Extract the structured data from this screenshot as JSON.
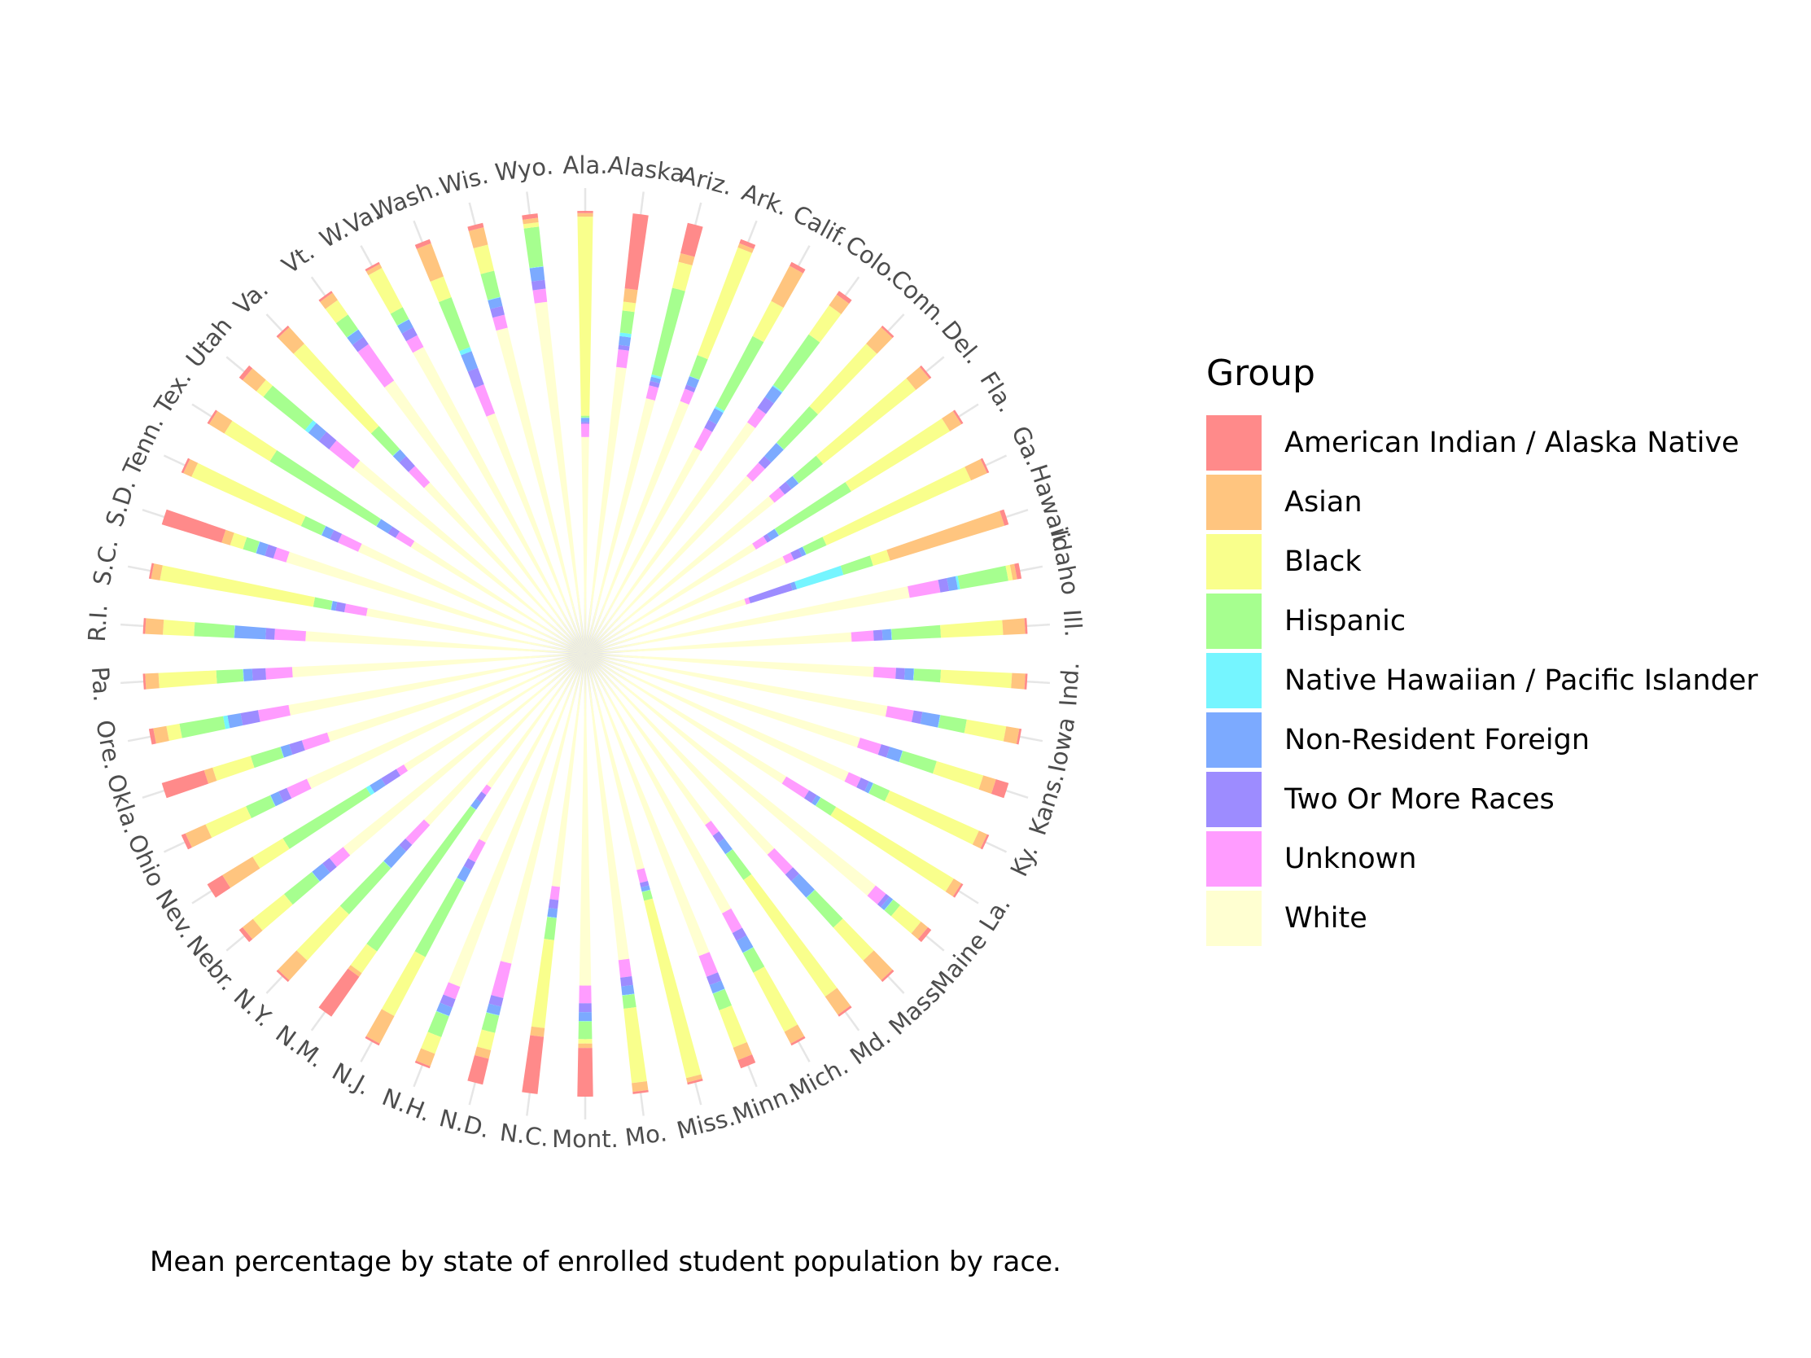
{
  "chart_data": {
    "type": "polar-stacked-bar",
    "caption": "Mean percentage by state of enrolled student population by race.",
    "legend_title": "Group",
    "legend_position": "right",
    "groups": [
      {
        "name": "American Indian / Alaska Native",
        "color": "#ff8a8a"
      },
      {
        "name": "Asian",
        "color": "#ffc57f"
      },
      {
        "name": "Black",
        "color": "#f9ff8c"
      },
      {
        "name": "Hispanic",
        "color": "#a6ff8f"
      },
      {
        "name": "Native Hawaiian / Pacific Islander",
        "color": "#75f5ff"
      },
      {
        "name": "Non-Resident Foreign",
        "color": "#7caaff"
      },
      {
        "name": "Two Or More Races",
        "color": "#9d8cff"
      },
      {
        "name": "Unknown",
        "color": "#ff9cff"
      },
      {
        "name": "White",
        "color": "#ffffd1"
      }
    ],
    "states": [
      "Ala.",
      "Alaska",
      "Ariz.",
      "Ark.",
      "Calif.",
      "Colo.",
      "Conn.",
      "Del.",
      "Fla.",
      "Ga.",
      "Hawaii",
      "Idaho",
      "Ill.",
      "Ind.",
      "Iowa",
      "Kans.",
      "Ky.",
      "La.",
      "Maine",
      "Mass.",
      "Md.",
      "Mich.",
      "Minn.",
      "Miss.",
      "Mo.",
      "Mont.",
      "N.C.",
      "N.D.",
      "N.H.",
      "N.J.",
      "N.M.",
      "N.Y.",
      "Nebr.",
      "Nev.",
      "Ohio",
      "Okla.",
      "Ore.",
      "Pa.",
      "R.I.",
      "S.C.",
      "S.D.",
      "Tenn.",
      "Tex.",
      "Utah",
      "Va.",
      "Vt.",
      "W.Va.",
      "Wash.",
      "Wis.",
      "Wyo."
    ],
    "values": [
      [
        0.5,
        0.8,
        45,
        0.4,
        0.1,
        0.9,
        0.4,
        3.0,
        49
      ],
      [
        17,
        3,
        2,
        5,
        0.8,
        2,
        1,
        4,
        65
      ],
      [
        7,
        2,
        6,
        20,
        0.5,
        1,
        1,
        3,
        59
      ],
      [
        1,
        1,
        26,
        5,
        0.1,
        2,
        1,
        3,
        61
      ],
      [
        1,
        9,
        9,
        18,
        0.5,
        3,
        2,
        5,
        53
      ],
      [
        1,
        3,
        8,
        14,
        0.3,
        3,
        3,
        4,
        64
      ],
      [
        0.5,
        5,
        19,
        11,
        0.1,
        4,
        2,
        4,
        54
      ],
      [
        0.5,
        4,
        27,
        7,
        0.1,
        2,
        2,
        3,
        55
      ],
      [
        0.5,
        3,
        26,
        19,
        0.1,
        2,
        1,
        3,
        45
      ],
      [
        0.5,
        4,
        36,
        5,
        0.1,
        1,
        2,
        2,
        50
      ],
      [
        1,
        27,
        4,
        7,
        11,
        1,
        10,
        1,
        38
      ],
      [
        1,
        1,
        1,
        11,
        0.5,
        2,
        2,
        7,
        74
      ],
      [
        0.5,
        5,
        14,
        11,
        0.1,
        2,
        2,
        5,
        60
      ],
      [
        0.5,
        3,
        16,
        6,
        0.1,
        2,
        2,
        5,
        65
      ],
      [
        0.5,
        3,
        9,
        6,
        0.1,
        4,
        2,
        6,
        69
      ],
      [
        3,
        3,
        11,
        8,
        0.1,
        3,
        2,
        5,
        65
      ],
      [
        0.5,
        2,
        22,
        4,
        0.1,
        1,
        2,
        3,
        65
      ],
      [
        0.5,
        2,
        31,
        4,
        0.1,
        1,
        2,
        6,
        53
      ],
      [
        1,
        2,
        6,
        2,
        0.1,
        1,
        1,
        3,
        84
      ],
      [
        0.5,
        6,
        10,
        9,
        0.1,
        5,
        2,
        6,
        61
      ],
      [
        0.5,
        5,
        32,
        7,
        0.1,
        3,
        2,
        3,
        47
      ],
      [
        0.5,
        3,
        15,
        5,
        0.1,
        3,
        2,
        5,
        66
      ],
      [
        2,
        3,
        9,
        4,
        0.1,
        2,
        2,
        5,
        73
      ],
      [
        0.5,
        1,
        41,
        2,
        0.1,
        1,
        1,
        3,
        50
      ],
      [
        0.5,
        2,
        17,
        3,
        0.1,
        2,
        2,
        4,
        70
      ],
      [
        11,
        1,
        1,
        4,
        0.1,
        2,
        2,
        4,
        75
      ],
      [
        13,
        2,
        20,
        5,
        0.1,
        2,
        2,
        3,
        53
      ],
      [
        6,
        2,
        4,
        4,
        0.1,
        2,
        2,
        8,
        72
      ],
      [
        0.5,
        3,
        4,
        5,
        0.1,
        2,
        2,
        3,
        80
      ],
      [
        0.5,
        7,
        15,
        19,
        0.1,
        3,
        2,
        5,
        48
      ],
      [
        11,
        1,
        6,
        39,
        0.1,
        2,
        2,
        2,
        37
      ],
      [
        0.5,
        6,
        14,
        14,
        0.1,
        5,
        2,
        6,
        52
      ],
      [
        1,
        3,
        9,
        8,
        0.1,
        3,
        2,
        4,
        70
      ],
      [
        4,
        8,
        8,
        22,
        1,
        3,
        4,
        2,
        48
      ],
      [
        1,
        5,
        10,
        6,
        0.1,
        2,
        2,
        5,
        69
      ],
      [
        10,
        2,
        9,
        7,
        0.1,
        2,
        3,
        6,
        61
      ],
      [
        1,
        3,
        3,
        10,
        1,
        3,
        4,
        7,
        68
      ],
      [
        0.5,
        3,
        13,
        6,
        0.1,
        2,
        3,
        6,
        66
      ],
      [
        0.5,
        4,
        7,
        9,
        0.1,
        7,
        2,
        7,
        63
      ],
      [
        0.5,
        2,
        35,
        4,
        0.1,
        1,
        2,
        5,
        50
      ],
      [
        14,
        2,
        3,
        3,
        0.1,
        2,
        2,
        3,
        70
      ],
      [
        0.5,
        2,
        27,
        5,
        0.1,
        2,
        2,
        5,
        56
      ],
      [
        0.5,
        4,
        12,
        28,
        0.1,
        3,
        2,
        4,
        46
      ],
      [
        1,
        4,
        2,
        12,
        1,
        3,
        3,
        7,
        67
      ],
      [
        0.5,
        5,
        25,
        7,
        0.1,
        2,
        3,
        5,
        52
      ],
      [
        0.5,
        2,
        4,
        4,
        0.1,
        2,
        2,
        10,
        75
      ],
      [
        0.5,
        1,
        10,
        3,
        0.1,
        2,
        2,
        3,
        78
      ],
      [
        1,
        8,
        5,
        12,
        1,
        4,
        4,
        7,
        58
      ],
      [
        1,
        4,
        6,
        6,
        0.1,
        2,
        2,
        3,
        75
      ],
      [
        1,
        1,
        1,
        9,
        0.1,
        3,
        2,
        3,
        80
      ]
    ]
  }
}
